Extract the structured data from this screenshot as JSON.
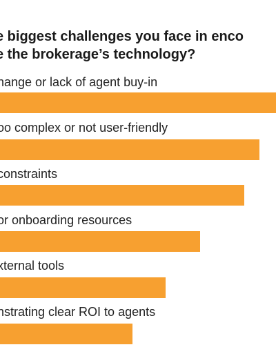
{
  "chart_data": {
    "type": "bar",
    "orientation": "horizontal",
    "title_lines": [
      "e biggest challenges you face in enco",
      "e the brokerage’s technology?"
    ],
    "categories": [
      "hange or lack of agent buy-in",
      "oo complex or not user-friendly",
      "constraints",
      "or onboarding resources",
      "xternal tools",
      "nstrating clear ROI to agents"
    ],
    "values": [
      100,
      94,
      88.5,
      72.5,
      60,
      48
    ],
    "xlim": [
      0,
      100
    ],
    "grid": false,
    "legend": "none",
    "bar_color": "#f7a030"
  }
}
